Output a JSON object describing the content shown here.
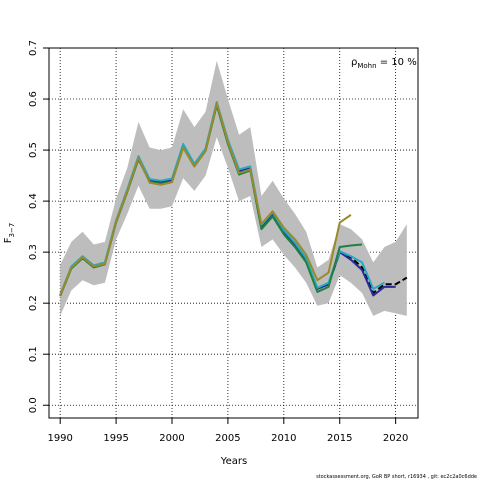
{
  "chart_data": {
    "type": "line",
    "xlabel": "Years",
    "ylabel": "F",
    "ylabel_sub": "3−7",
    "annotation": {
      "rho": "ρ",
      "sub": "Mohn",
      "text": " = 10 %"
    },
    "footer": "stockassessment.org, GoR BP short, r16934 , git: ec2c2a0c6dde",
    "xlim": [
      1989,
      2022
    ],
    "ylim": [
      -0.025,
      0.7
    ],
    "xticks": [
      1990,
      1995,
      2000,
      2005,
      2010,
      2015,
      2020
    ],
    "yticks": [
      0.0,
      0.1,
      0.2,
      0.3,
      0.4,
      0.5,
      0.6,
      0.7
    ],
    "ytick_labels": [
      "0.0",
      "0.1",
      "0.2",
      "0.3",
      "0.4",
      "0.5",
      "0.6",
      "0.7"
    ],
    "grid": true,
    "confidence_band": {
      "x": [
        1990,
        1991,
        1992,
        1993,
        1994,
        1995,
        1996,
        1997,
        1998,
        1999,
        2000,
        2001,
        2002,
        2003,
        2004,
        2005,
        2006,
        2007,
        2008,
        2009,
        2010,
        2011,
        2012,
        2013,
        2014,
        2015,
        2016,
        2017,
        2018,
        2019,
        2020,
        2021
      ],
      "upper": [
        0.275,
        0.32,
        0.34,
        0.315,
        0.32,
        0.405,
        0.465,
        0.555,
        0.505,
        0.5,
        0.505,
        0.58,
        0.545,
        0.575,
        0.675,
        0.6,
        0.53,
        0.545,
        0.41,
        0.44,
        0.405,
        0.375,
        0.34,
        0.27,
        0.285,
        0.355,
        0.345,
        0.325,
        0.28,
        0.31,
        0.32,
        0.355
      ],
      "lower": [
        0.175,
        0.225,
        0.245,
        0.235,
        0.24,
        0.325,
        0.375,
        0.43,
        0.385,
        0.385,
        0.39,
        0.445,
        0.42,
        0.45,
        0.525,
        0.465,
        0.4,
        0.41,
        0.31,
        0.325,
        0.295,
        0.27,
        0.24,
        0.195,
        0.2,
        0.255,
        0.24,
        0.22,
        0.175,
        0.185,
        0.18,
        0.175
      ]
    },
    "series": [
      {
        "color": "#000000",
        "x": [
          1990,
          1991,
          1992,
          1993,
          1994,
          1995,
          1996,
          1997,
          1998,
          1999,
          2000,
          2001,
          2002,
          2003,
          2004,
          2005,
          2006,
          2007,
          2008,
          2009,
          2010,
          2011,
          2012,
          2013,
          2014,
          2015,
          2016,
          2017,
          2018,
          2019,
          2020,
          2021
        ],
        "values": [
          0.215,
          0.27,
          0.29,
          0.272,
          0.278,
          0.36,
          0.42,
          0.485,
          0.44,
          0.437,
          0.44,
          0.508,
          0.47,
          0.5,
          0.59,
          0.515,
          0.458,
          0.465,
          0.35,
          0.375,
          0.34,
          0.315,
          0.285,
          0.228,
          0.237,
          0.3,
          0.29,
          0.27,
          0.22,
          0.237,
          0.237,
          0.25
        ],
        "dash": [
          6,
          3
        ]
      },
      {
        "color": "#2a2a9a",
        "x": [
          1990,
          1991,
          1992,
          1993,
          1994,
          1995,
          1996,
          1997,
          1998,
          1999,
          2000,
          2001,
          2002,
          2003,
          2004,
          2005,
          2006,
          2007,
          2008,
          2009,
          2010,
          2011,
          2012,
          2013,
          2014,
          2015,
          2016,
          2017,
          2018,
          2019,
          2020
        ],
        "values": [
          0.215,
          0.27,
          0.29,
          0.272,
          0.278,
          0.36,
          0.42,
          0.485,
          0.44,
          0.437,
          0.44,
          0.508,
          0.47,
          0.5,
          0.59,
          0.515,
          0.458,
          0.465,
          0.35,
          0.375,
          0.34,
          0.315,
          0.285,
          0.228,
          0.237,
          0.3,
          0.285,
          0.265,
          0.215,
          0.232,
          0.232
        ]
      },
      {
        "color": "#26a9c4",
        "x": [
          1990,
          1991,
          1992,
          1993,
          1994,
          1995,
          1996,
          1997,
          1998,
          1999,
          2000,
          2001,
          2002,
          2003,
          2004,
          2005,
          2006,
          2007,
          2008,
          2009,
          2010,
          2011,
          2012,
          2013,
          2014,
          2015,
          2016,
          2017,
          2018,
          2019
        ],
        "values": [
          0.216,
          0.272,
          0.292,
          0.274,
          0.28,
          0.362,
          0.423,
          0.488,
          0.443,
          0.44,
          0.444,
          0.512,
          0.473,
          0.503,
          0.594,
          0.52,
          0.462,
          0.468,
          0.353,
          0.378,
          0.343,
          0.318,
          0.288,
          0.23,
          0.24,
          0.302,
          0.292,
          0.28,
          0.228,
          0.24
        ]
      },
      {
        "color": "#1f8040",
        "x": [
          1990,
          1991,
          1992,
          1993,
          1994,
          1995,
          1996,
          1997,
          1998,
          1999,
          2000,
          2001,
          2002,
          2003,
          2004,
          2005,
          2006,
          2007,
          2008,
          2009,
          2010,
          2011,
          2012,
          2013,
          2014,
          2015,
          2016,
          2017
        ],
        "values": [
          0.214,
          0.268,
          0.288,
          0.27,
          0.276,
          0.358,
          0.418,
          0.482,
          0.438,
          0.434,
          0.438,
          0.505,
          0.468,
          0.498,
          0.588,
          0.512,
          0.452,
          0.46,
          0.345,
          0.37,
          0.335,
          0.31,
          0.28,
          0.222,
          0.232,
          0.31,
          0.313,
          0.315
        ]
      },
      {
        "color": "#9a8a2c",
        "x": [
          1990,
          1991,
          1992,
          1993,
          1994,
          1995,
          1996,
          1997,
          1998,
          1999,
          2000,
          2001,
          2002,
          2003,
          2004,
          2005,
          2006,
          2007,
          2008,
          2009,
          2010,
          2011,
          2012,
          2013,
          2014,
          2015,
          2016
        ],
        "values": [
          0.215,
          0.27,
          0.29,
          0.272,
          0.277,
          0.36,
          0.42,
          0.485,
          0.436,
          0.432,
          0.437,
          0.505,
          0.468,
          0.498,
          0.592,
          0.516,
          0.455,
          0.462,
          0.355,
          0.38,
          0.348,
          0.325,
          0.295,
          0.245,
          0.26,
          0.358,
          0.373
        ]
      }
    ]
  }
}
